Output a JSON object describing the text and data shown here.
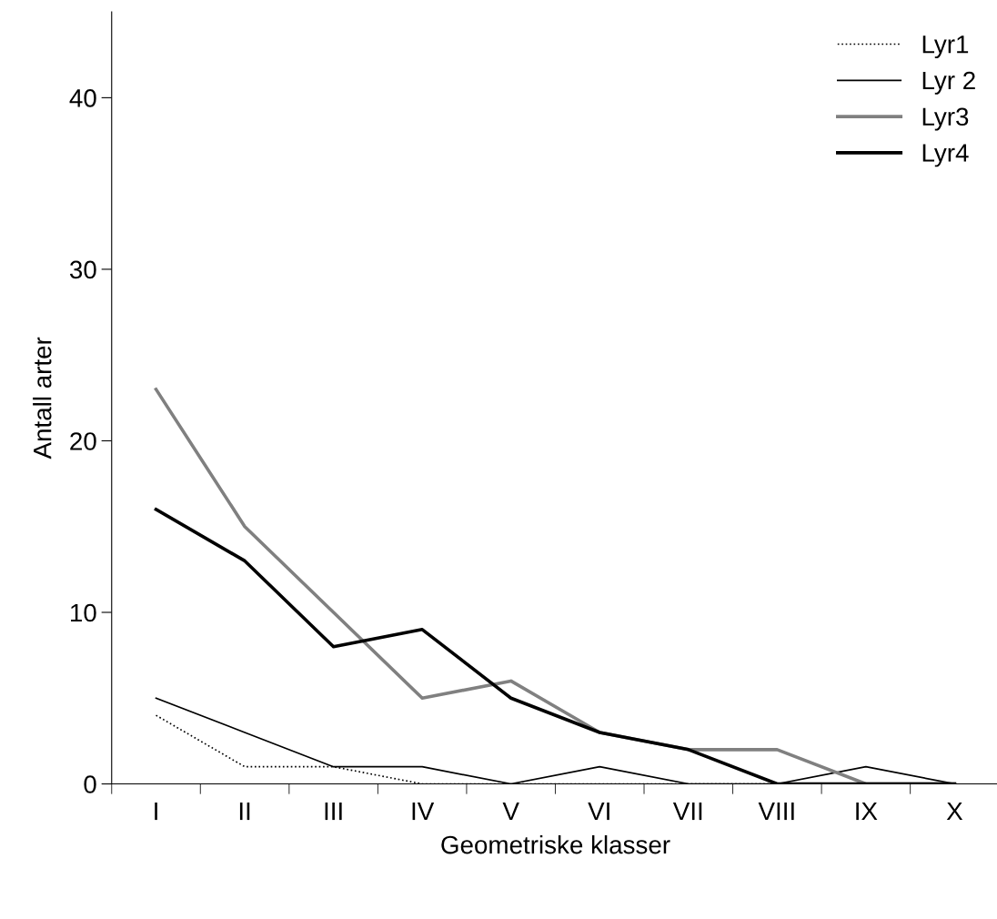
{
  "chart_data": {
    "type": "line",
    "xlabel": "Geometriske klasser",
    "ylabel": "Antall arter",
    "categories": [
      "I",
      "II",
      "III",
      "IV",
      "V",
      "VI",
      "VII",
      "VIII",
      "IX",
      "X"
    ],
    "series": [
      {
        "name": "Lyr1",
        "color": "#000000",
        "line_style": "dotted",
        "values": [
          4,
          1,
          1,
          0,
          0,
          0,
          0,
          0,
          0,
          0
        ]
      },
      {
        "name": "Lyr 2",
        "color": "#000000",
        "line_style": "solid",
        "values": [
          5,
          3,
          1,
          1,
          0,
          1,
          0,
          0,
          1,
          0
        ]
      },
      {
        "name": "Lyr3",
        "color": "#808080",
        "line_style": "solid",
        "values": [
          23,
          15,
          10,
          5,
          6,
          3,
          2,
          2,
          0,
          0
        ]
      },
      {
        "name": "Lyr4",
        "color": "#000000",
        "line_style": "solid",
        "values": [
          16,
          13,
          8,
          9,
          5,
          3,
          2,
          0,
          0,
          0
        ]
      }
    ],
    "ylim": [
      0,
      45
    ],
    "yticks": [
      0,
      10,
      20,
      30,
      40
    ],
    "grid": false,
    "legend": "top right",
    "marker": "none"
  }
}
